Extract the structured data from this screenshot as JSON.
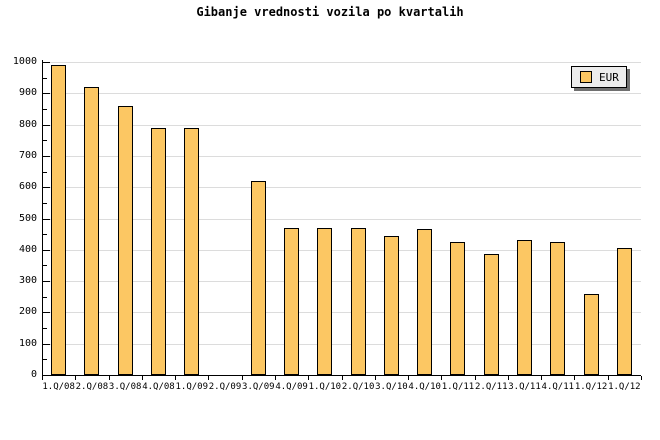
{
  "chart_data": {
    "type": "bar",
    "title": "Gibanje vrednosti vozila po kvartalih",
    "categories": [
      "1.Q/08",
      "2.Q/08",
      "3.Q/08",
      "4.Q/08",
      "1.Q/09",
      "2.Q/09",
      "3.Q/09",
      "4.Q/09",
      "1.Q/10",
      "2.Q/10",
      "3.Q/10",
      "4.Q/10",
      "1.Q/11",
      "2.Q/11",
      "3.Q/11",
      "4.Q/11",
      "1.Q/12",
      "1.Q/12"
    ],
    "series": [
      {
        "name": "EUR",
        "values": [
          990,
          920,
          860,
          790,
          790,
          null,
          620,
          470,
          470,
          470,
          445,
          465,
          425,
          385,
          430,
          425,
          260,
          405
        ]
      }
    ],
    "ylim": [
      0,
      1000
    ],
    "ytick_major_interval": 100,
    "ytick_minor_interval": 50,
    "ytick_labels": [
      "0",
      "100",
      "200",
      "300",
      "400",
      "500",
      "600",
      "700",
      "800",
      "900",
      "1000"
    ],
    "grid": "horizontal-major",
    "legend_position": "top-right",
    "xlabel": "",
    "ylabel": ""
  },
  "colors": {
    "background": "#FFFFFF",
    "bar_fill": "#FCC763",
    "bar_border": "#000000",
    "grid_line": "#DCDCDC",
    "axis_line": "#000000",
    "tick": "#000000",
    "text": "#000000",
    "legend_bg": "#ECECEC",
    "legend_border": "#000000",
    "legend_shadow": "#707070"
  }
}
